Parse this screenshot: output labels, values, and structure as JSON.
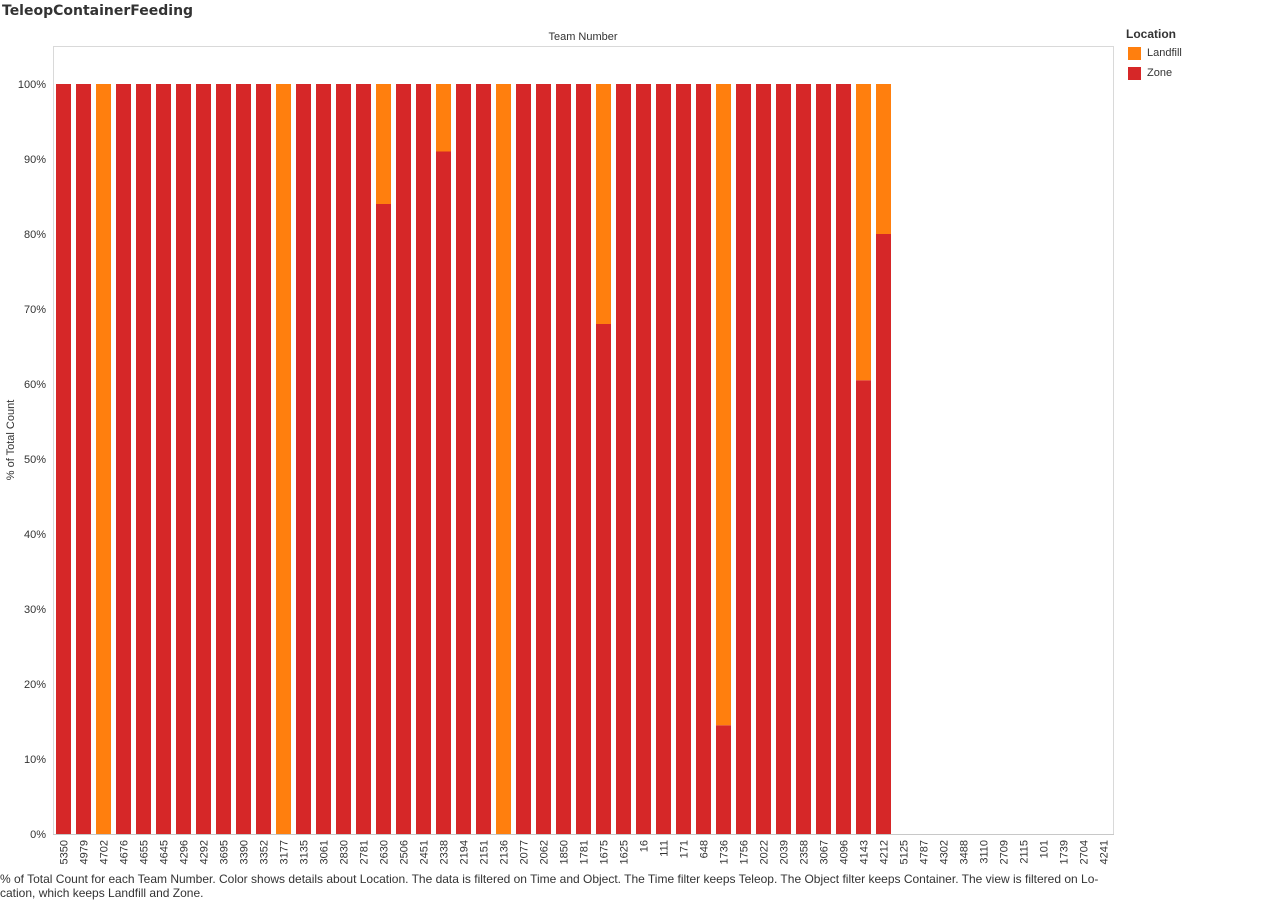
{
  "sheet_title": "TeleopContainerFeeding",
  "caption": "% of Total Count for each Team Number.  Color shows details about Location. The data is filtered on Time and Object. The Time filter keeps Teleop. The Object filter keeps Container. The view is filtered on Lo-cation, which keeps Landfill and Zone.",
  "legend": {
    "title": "Location",
    "items": [
      {
        "label": "Landfill",
        "color": "#FF7F0E"
      },
      {
        "label": "Zone",
        "color": "#D62728"
      }
    ]
  },
  "chart_data": {
    "type": "bar",
    "stacked": true,
    "header": "Team Number",
    "ylabel": "% of Total Count",
    "ylim": [
      0,
      100
    ],
    "y_ticks": [
      "0%",
      "10%",
      "20%",
      "30%",
      "40%",
      "50%",
      "60%",
      "70%",
      "80%",
      "90%",
      "100%"
    ],
    "grid": false,
    "legend_position": "top-right",
    "categories": [
      "5350",
      "4979",
      "4702",
      "4676",
      "4655",
      "4645",
      "4296",
      "4292",
      "3695",
      "3390",
      "3352",
      "3177",
      "3135",
      "3061",
      "2830",
      "2781",
      "2630",
      "2506",
      "2451",
      "2338",
      "2194",
      "2151",
      "2136",
      "2077",
      "2062",
      "1850",
      "1781",
      "1675",
      "1625",
      "16",
      "111",
      "171",
      "648",
      "1736",
      "1756",
      "2022",
      "2039",
      "2358",
      "3067",
      "4096",
      "4143",
      "4212",
      "5125",
      "4787",
      "4302",
      "3488",
      "3110",
      "2709",
      "2115",
      "101",
      "1739",
      "2704",
      "4241"
    ],
    "series": [
      {
        "name": "Zone",
        "color": "#D62728",
        "values": [
          100,
          100,
          0,
          100,
          100,
          100,
          100,
          100,
          100,
          100,
          100,
          0,
          100,
          100,
          100,
          100,
          84,
          100,
          100,
          91,
          100,
          100,
          0,
          100,
          100,
          100,
          100,
          68,
          100,
          100,
          100,
          100,
          100,
          14.5,
          100,
          100,
          100,
          100,
          100,
          100,
          60.5,
          80,
          null,
          null,
          null,
          null,
          null,
          null,
          null,
          null,
          null,
          null,
          null
        ]
      },
      {
        "name": "Landfill",
        "color": "#FF7F0E",
        "values": [
          0,
          0,
          100,
          0,
          0,
          0,
          0,
          0,
          0,
          0,
          0,
          100,
          0,
          0,
          0,
          0,
          16,
          0,
          0,
          9,
          0,
          0,
          100,
          0,
          0,
          0,
          0,
          32,
          0,
          0,
          0,
          0,
          0,
          85.5,
          0,
          0,
          0,
          0,
          0,
          0,
          39.5,
          20,
          null,
          null,
          null,
          null,
          null,
          null,
          null,
          null,
          null,
          null,
          null
        ]
      }
    ]
  }
}
